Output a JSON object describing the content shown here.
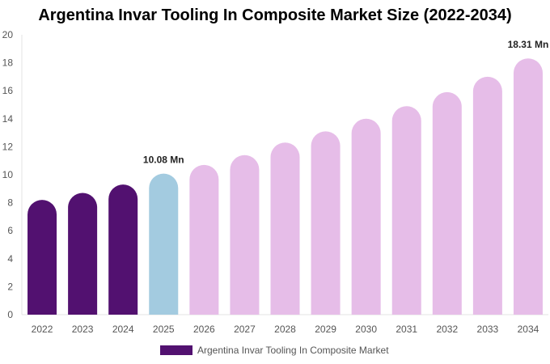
{
  "chart_data": {
    "type": "bar",
    "title": "Argentina Invar Tooling In Composite Market Size (2022-2034)",
    "xlabel": "",
    "ylabel": "",
    "categories": [
      "2022",
      "2023",
      "2024",
      "2025",
      "2026",
      "2027",
      "2028",
      "2029",
      "2030",
      "2031",
      "2032",
      "2033",
      "2034"
    ],
    "series": [
      {
        "name": "Argentina Invar Tooling In Composite Market",
        "values": [
          8.2,
          8.7,
          9.3,
          10.08,
          10.7,
          11.4,
          12.3,
          13.1,
          14.0,
          14.9,
          15.9,
          17.0,
          18.31
        ]
      }
    ],
    "bar_colors": [
      "#521170",
      "#521170",
      "#521170",
      "#a3cbe0",
      "#e6bde8",
      "#e6bde8",
      "#e6bde8",
      "#e6bde8",
      "#e6bde8",
      "#e6bde8",
      "#e6bde8",
      "#e6bde8",
      "#e6bde8"
    ],
    "data_labels": [
      {
        "category": "2025",
        "text": "10.08 Mn"
      },
      {
        "category": "2034",
        "text": "18.31 Mn"
      }
    ],
    "ylim": [
      0,
      20
    ],
    "yticks": [
      0,
      2,
      4,
      6,
      8,
      10,
      12,
      14,
      16,
      18,
      20
    ],
    "grid": false,
    "legend_position": "bottom",
    "legend_color": "#521170"
  }
}
